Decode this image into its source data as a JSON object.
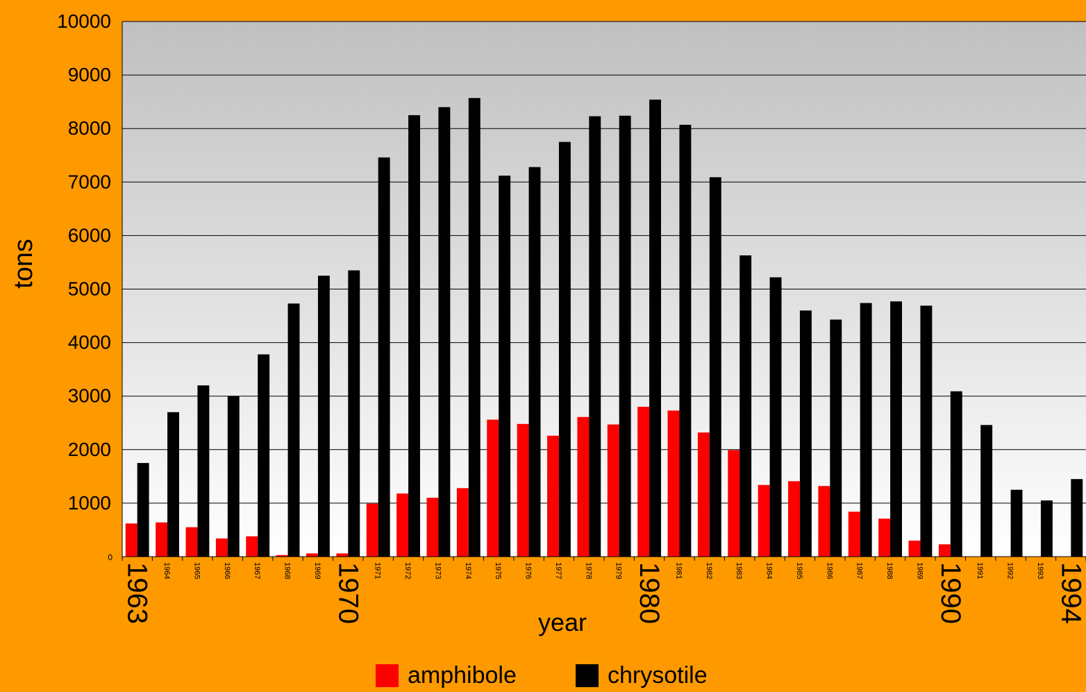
{
  "colors": {
    "background": "#FF9900",
    "plot_top": "#C0C0C0",
    "plot_bottom": "#FFFFFF",
    "amphibole": "#FF0000",
    "chrysotile": "#000000"
  },
  "chart_data": {
    "type": "bar",
    "title": "",
    "xlabel": "year",
    "ylabel": "tons",
    "ylim": [
      0,
      10000
    ],
    "yticks": [
      "0",
      "1000",
      "2000",
      "3000",
      "4000",
      "5000",
      "6000",
      "7000",
      "8000",
      "9000",
      "10000"
    ],
    "grid": true,
    "legend_position": "bottom-center",
    "categories": [
      "1963",
      "1964",
      "1965",
      "1966",
      "1967",
      "1968",
      "1969",
      "1970",
      "1971",
      "1972",
      "1973",
      "1974",
      "1975",
      "1976",
      "1977",
      "1978",
      "1979",
      "1980",
      "1981",
      "1982",
      "1983",
      "1984",
      "1985",
      "1986",
      "1987",
      "1988",
      "1989",
      "1990",
      "1991",
      "1992",
      "1993",
      "1994"
    ],
    "emphasized_categories": [
      "1963",
      "1970",
      "1980",
      "1990",
      "1994"
    ],
    "series": [
      {
        "name": "amphibole",
        "color": "#FF0000",
        "values": [
          620,
          640,
          550,
          340,
          380,
          30,
          60,
          60,
          990,
          1180,
          1100,
          1280,
          2560,
          2480,
          2260,
          2610,
          2470,
          2800,
          2730,
          2320,
          1990,
          1340,
          1410,
          1320,
          840,
          710,
          300,
          230,
          0,
          0,
          0,
          0
        ]
      },
      {
        "name": "chrysotile",
        "color": "#000000",
        "values": [
          1750,
          2700,
          3200,
          3000,
          3780,
          4730,
          5250,
          5350,
          7460,
          8250,
          8400,
          8570,
          7120,
          7280,
          7750,
          8230,
          8240,
          8540,
          8070,
          7090,
          5630,
          5220,
          4600,
          4430,
          4740,
          4770,
          4690,
          3090,
          2460,
          1250,
          1050,
          1450
        ]
      }
    ]
  }
}
